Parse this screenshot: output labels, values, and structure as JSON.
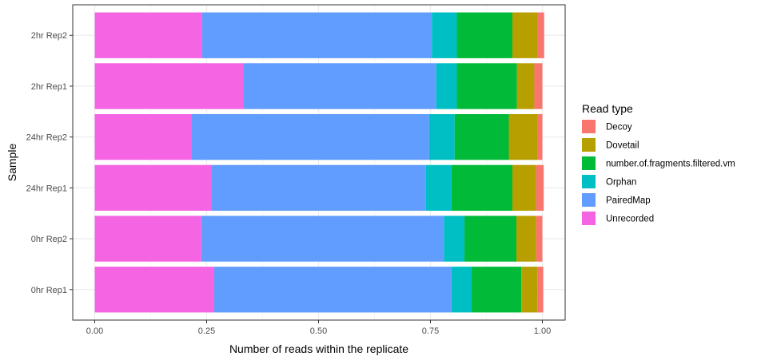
{
  "chart_data": {
    "type": "bar",
    "orientation": "horizontal",
    "stacked": true,
    "xlabel": "Number of reads within the replicate",
    "ylabel": "Sample",
    "xlim": [
      0,
      1
    ],
    "x_ticks": [
      0,
      0.25,
      0.5,
      0.75,
      1
    ],
    "x_tick_labels": [
      "0.00",
      "0.25",
      "0.50",
      "0.75",
      "1.00"
    ],
    "grid": true,
    "legend_position": "right",
    "legend_title": "Read type",
    "categories": [
      "0hr Rep1",
      "0hr Rep2",
      "24hr Rep1",
      "24hr Rep2",
      "2hr Rep1",
      "2hr Rep2"
    ],
    "stack_order_left_to_right": [
      "Unrecorded",
      "PairedMap",
      "Orphan",
      "number.of.fragments.filtered.vm",
      "Dovetail",
      "Decoy"
    ],
    "series": [
      {
        "name": "Decoy",
        "color": "#F8766D",
        "values": [
          0.013,
          0.014,
          0.017,
          0.01,
          0.018,
          0.014
        ]
      },
      {
        "name": "Dovetail",
        "color": "#B79F00",
        "values": [
          0.036,
          0.044,
          0.053,
          0.065,
          0.039,
          0.057
        ]
      },
      {
        "name": "number.of.fragments.filtered.vm",
        "color": "#00BA38",
        "values": [
          0.111,
          0.116,
          0.136,
          0.121,
          0.134,
          0.124
        ]
      },
      {
        "name": "Orphan",
        "color": "#00BFC4",
        "values": [
          0.045,
          0.046,
          0.057,
          0.057,
          0.046,
          0.056
        ]
      },
      {
        "name": "PairedMap",
        "color": "#619CFF",
        "values": [
          0.53,
          0.542,
          0.48,
          0.53,
          0.43,
          0.513
        ]
      },
      {
        "name": "Unrecorded",
        "color": "#F564E3",
        "values": [
          0.267,
          0.238,
          0.26,
          0.217,
          0.333,
          0.24
        ]
      }
    ]
  }
}
